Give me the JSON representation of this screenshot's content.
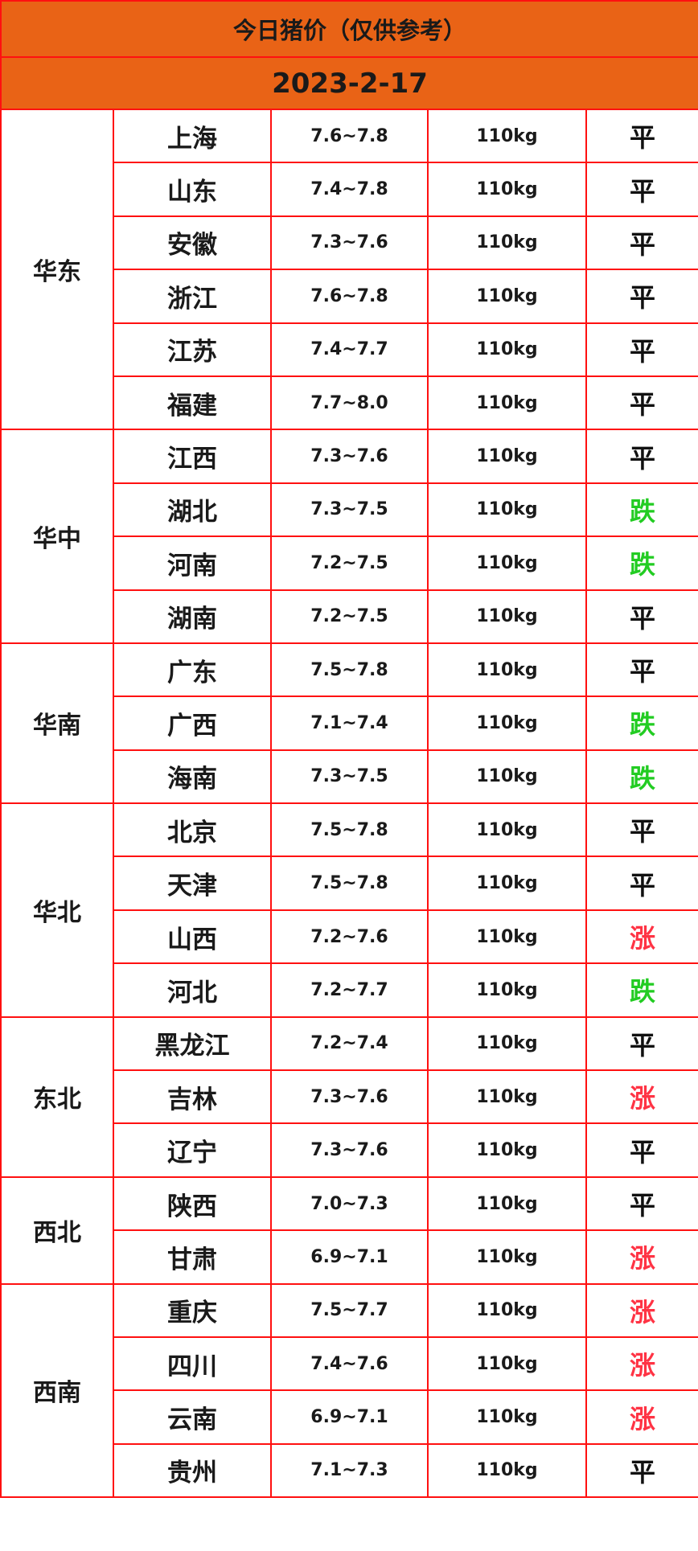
{
  "title": "今日猪价（仅供参考）",
  "date": "2023-2-17",
  "colors": {
    "header": "#e96316",
    "border": "#ff1010",
    "up": "#ff3344",
    "down": "#22cc22",
    "flat": "#111111"
  },
  "regions": [
    {
      "name": "华东",
      "rows": [
        [
          "上海",
          "7.6~7.8",
          "110kg",
          "平"
        ],
        [
          "山东",
          "7.4~7.8",
          "110kg",
          "平"
        ],
        [
          "安徽",
          "7.3~7.6",
          "110kg",
          "平"
        ],
        [
          "浙江",
          "7.6~7.8",
          "110kg",
          "平"
        ],
        [
          "江苏",
          "7.4~7.7",
          "110kg",
          "平"
        ],
        [
          "福建",
          "7.7~8.0",
          "110kg",
          "平"
        ]
      ]
    },
    {
      "name": "华中",
      "rows": [
        [
          "江西",
          "7.3~7.6",
          "110kg",
          "平"
        ],
        [
          "湖北",
          "7.3~7.5",
          "110kg",
          "跌"
        ],
        [
          "河南",
          "7.2~7.5",
          "110kg",
          "跌"
        ],
        [
          "湖南",
          "7.2~7.5",
          "110kg",
          "平"
        ]
      ]
    },
    {
      "name": "华南",
      "rows": [
        [
          "广东",
          "7.5~7.8",
          "110kg",
          "平"
        ],
        [
          "广西",
          "7.1~7.4",
          "110kg",
          "跌"
        ],
        [
          "海南",
          "7.3~7.5",
          "110kg",
          "跌"
        ]
      ]
    },
    {
      "name": "华北",
      "rows": [
        [
          "北京",
          "7.5~7.8",
          "110kg",
          "平"
        ],
        [
          "天津",
          "7.5~7.8",
          "110kg",
          "平"
        ],
        [
          "山西",
          "7.2~7.6",
          "110kg",
          "涨"
        ],
        [
          "河北",
          "7.2~7.7",
          "110kg",
          "跌"
        ]
      ]
    },
    {
      "name": "东北",
      "rows": [
        [
          "黑龙江",
          "7.2~7.4",
          "110kg",
          "平"
        ],
        [
          "吉林",
          "7.3~7.6",
          "110kg",
          "涨"
        ],
        [
          "辽宁",
          "7.3~7.6",
          "110kg",
          "平"
        ]
      ]
    },
    {
      "name": "西北",
      "rows": [
        [
          "陕西",
          "7.0~7.3",
          "110kg",
          "平"
        ],
        [
          "甘肃",
          "6.9~7.1",
          "110kg",
          "涨"
        ]
      ]
    },
    {
      "name": "西南",
      "rows": [
        [
          "重庆",
          "7.5~7.7",
          "110kg",
          "涨"
        ],
        [
          "四川",
          "7.4~7.6",
          "110kg",
          "涨"
        ],
        [
          "云南",
          "6.9~7.1",
          "110kg",
          "涨"
        ],
        [
          "贵州",
          "7.1~7.3",
          "110kg",
          "平"
        ]
      ]
    }
  ]
}
